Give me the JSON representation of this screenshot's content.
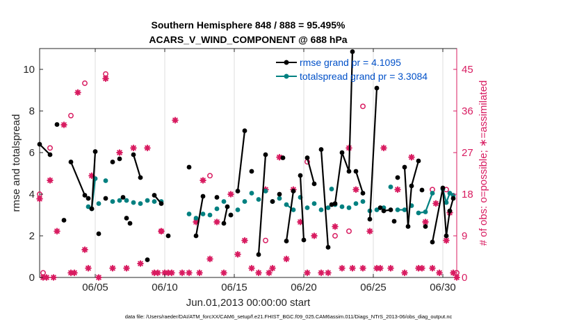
{
  "chart_data": {
    "type": "line",
    "title_line1": "Southern Hemisphere 848 / 888 = 95.495%",
    "title_line2": "ACARS_V_WIND_COMPONENT @ 688 hPa",
    "xlabel": "Jun.01,2013 00:00:00 start",
    "ylabel_left": "rmse and totalspread",
    "ylabel_right": "# of obs: o=possible; ∗=assimilated",
    "footnote": "data file: /Users/raeder/DAI/ATM_forcXX/CAM6_setup/f.e21.FHIST_BGC.f09_025.CAM6assim.011/Diags_NTrS_2013-06/obs_diag_output.nc",
    "xlim": [
      1,
      31
    ],
    "ylim_left": [
      0,
      11
    ],
    "ylim_right": [
      0,
      49.5
    ],
    "x_ticks": [
      5,
      10,
      15,
      20,
      25,
      30
    ],
    "x_tick_labels": [
      "06/05",
      "06/10",
      "06/15",
      "06/20",
      "06/25",
      "06/30"
    ],
    "y_ticks_left": [
      0,
      2,
      4,
      6,
      8,
      10
    ],
    "y_tick_labels_left": [
      "0",
      "2",
      "4",
      "6",
      "8",
      "10"
    ],
    "y_ticks_right": [
      0,
      9,
      18,
      27,
      36,
      45
    ],
    "y_tick_labels_right": [
      "0",
      "9",
      "18",
      "27",
      "36",
      "45"
    ],
    "colors": {
      "rmse": "#000000",
      "spread": "#008080",
      "obs": "#d81b60",
      "legend_text": "#0050c8"
    },
    "legend": [
      {
        "name": "rmse grand pr = 4.1095"
      },
      {
        "name": "totalspread grand pr = 3.3084"
      }
    ],
    "series": [
      {
        "name": "rmse",
        "x": [
          1.0,
          1.75,
          2.25,
          2.75,
          3.25,
          4.25,
          4.5,
          4.75,
          5.0,
          5.25,
          5.75,
          6.25,
          6.75,
          7.0,
          7.25,
          7.5,
          7.75,
          8.25,
          8.75,
          9.25,
          9.75,
          10.25,
          11.75,
          12.25,
          12.75,
          13.75,
          14.25,
          14.5,
          14.75,
          15.25,
          15.75,
          16.25,
          16.75,
          17.25,
          17.75,
          18.25,
          18.5,
          18.75,
          19.25,
          19.75,
          20.0,
          20.25,
          20.75,
          21.25,
          21.75,
          22.0,
          22.25,
          22.75,
          23.25,
          23.5,
          23.75,
          24.25,
          24.75,
          25.25,
          25.5,
          25.75,
          26.25,
          26.5,
          26.75,
          27.25,
          27.5,
          27.75,
          28.25,
          28.5,
          28.75,
          29.25,
          30.0,
          30.25,
          30.5,
          30.75
        ],
        "y": [
          6.4,
          5.9,
          7.35,
          2.75,
          5.55,
          3.95,
          3.8,
          3.3,
          6.05,
          2.1,
          3.8,
          5.55,
          5.7,
          3.85,
          2.85,
          2.6,
          5.9,
          4.8,
          0.85,
          3.95,
          3.55,
          2.0,
          5.3,
          2.0,
          3.9,
          3.85,
          2.6,
          3.4,
          3.0,
          4.15,
          7.05,
          5.1,
          1.1,
          5.9,
          3.65,
          4.0,
          5.75,
          1.75,
          4.15,
          4.9,
          1.8,
          5.75,
          4.5,
          6.15,
          1.45,
          3.5,
          3.55,
          6.0,
          5.1,
          10.85,
          5.1,
          4.05,
          2.8,
          9.1,
          3.35,
          3.2,
          3.25,
          2.7,
          4.8,
          5.3,
          2.45,
          4.4,
          5.6,
          4.2,
          2.45,
          1.7,
          4.3,
          2.0,
          3.2,
          3.8
        ],
        "segments": [
          [
            0,
            1
          ],
          [
            4,
            5
          ],
          [
            7,
            8
          ],
          [
            16,
            17
          ],
          [
            19,
            20
          ],
          [
            23,
            24
          ],
          [
            26,
            27
          ],
          [
            29,
            30
          ],
          [
            32,
            33
          ],
          [
            37,
            38
          ],
          [
            39,
            40
          ],
          [
            41,
            42
          ],
          [
            43,
            44
          ],
          [
            46,
            47
          ],
          [
            47,
            48
          ],
          [
            48,
            49
          ],
          [
            50,
            51
          ],
          [
            52,
            53
          ],
          [
            55,
            56
          ],
          [
            59,
            60
          ],
          [
            60,
            61
          ],
          [
            61,
            62
          ],
          [
            65,
            66
          ],
          [
            66,
            67
          ],
          [
            67,
            68
          ],
          [
            68,
            69
          ]
        ]
      },
      {
        "name": "totalspread",
        "x": [
          4.5,
          4.75,
          5.0,
          5.25,
          5.75,
          6.25,
          6.75,
          7.25,
          7.75,
          8.25,
          8.75,
          9.25,
          9.75,
          11.75,
          12.25,
          12.75,
          13.25,
          13.75,
          14.25,
          14.75,
          15.25,
          15.75,
          16.25,
          16.75,
          17.25,
          17.75,
          18.25,
          18.75,
          19.25,
          19.75,
          20.25,
          20.75,
          21.25,
          21.75,
          22.0,
          22.25,
          22.75,
          23.25,
          23.75,
          24.25,
          24.75,
          25.25,
          25.75,
          26.25,
          26.75,
          27.25,
          27.75,
          28.25,
          28.75,
          29.25,
          30.0,
          30.25,
          30.5,
          30.75
        ],
        "y": [
          3.4,
          3.3,
          4.75,
          3.55,
          4.65,
          3.65,
          3.7,
          3.7,
          3.6,
          3.55,
          3.7,
          3.65,
          3.65,
          3.05,
          2.85,
          3.05,
          3.0,
          3.3,
          3.65,
          3.0,
          3.25,
          3.65,
          4.05,
          3.75,
          4.15,
          3.65,
          3.8,
          3.5,
          3.25,
          3.85,
          3.35,
          3.55,
          3.25,
          3.35,
          4.25,
          3.5,
          3.4,
          3.35,
          3.55,
          3.65,
          3.2,
          3.25,
          3.35,
          4.35,
          3.25,
          3.25,
          3.45,
          3.1,
          3.15,
          4.05,
          4.25,
          3.6,
          4.05,
          3.95
        ],
        "segments": [
          [
            0,
            1
          ],
          [
            1,
            2
          ],
          [
            27,
            28
          ],
          [
            44,
            45
          ],
          [
            47,
            48
          ],
          [
            48,
            49
          ],
          [
            50,
            51
          ],
          [
            51,
            52
          ],
          [
            52,
            53
          ]
        ]
      },
      {
        "name": "obs possible",
        "x": [
          1.0,
          1.25,
          1.75,
          3.25,
          4.25,
          5.75,
          9.75,
          13.25,
          17.25,
          20.25,
          22.25,
          23.25,
          24.25,
          29.25,
          30.25,
          31.0
        ],
        "y": [
          18.0,
          1.0,
          28.0,
          35.0,
          42.0,
          44.0,
          10.0,
          22.0,
          8.0,
          25.0,
          9.0,
          10.0,
          37.0,
          19.0,
          19.0,
          1.0
        ],
        "segments": []
      },
      {
        "name": "obs assimilated",
        "x": [
          1.0,
          1.25,
          1.5,
          1.75,
          2.0,
          2.25,
          2.75,
          3.25,
          3.5,
          3.75,
          4.25,
          4.5,
          4.75,
          5.25,
          5.75,
          6.25,
          6.75,
          7.25,
          7.75,
          8.25,
          8.75,
          9.25,
          9.5,
          9.75,
          10.0,
          10.25,
          10.5,
          10.75,
          11.25,
          11.75,
          12.25,
          12.5,
          12.75,
          13.25,
          13.75,
          14.25,
          14.75,
          15.25,
          15.75,
          16.25,
          16.75,
          17.25,
          17.5,
          17.75,
          18.25,
          18.75,
          19.25,
          19.75,
          20.25,
          20.75,
          21.25,
          21.75,
          22.25,
          22.75,
          23.25,
          23.5,
          23.75,
          24.25,
          24.75,
          25.25,
          25.5,
          25.75,
          26.25,
          26.75,
          27.25,
          27.75,
          28.25,
          28.5,
          28.75,
          29.25,
          29.5,
          29.75,
          30.25,
          30.5,
          30.75,
          31.0
        ],
        "y": [
          17.0,
          0.0,
          0.0,
          21.0,
          0.0,
          10.0,
          33.0,
          1.0,
          1.0,
          40.0,
          6.0,
          2.0,
          22.0,
          0.0,
          43.0,
          2.0,
          27.0,
          2.0,
          28.0,
          3.0,
          28.0,
          1.0,
          1.0,
          10.0,
          1.0,
          1.0,
          1.0,
          34.0,
          1.0,
          1.0,
          12.0,
          1.0,
          21.0,
          4.0,
          12.0,
          1.0,
          18.0,
          5.0,
          8.0,
          2.0,
          1.0,
          19.0,
          1.0,
          2.0,
          26.0,
          4.0,
          19.0,
          12.0,
          1.0,
          9.0,
          1.0,
          1.0,
          11.0,
          2.0,
          28.0,
          2.0,
          19.0,
          2.0,
          10.0,
          2.0,
          2.0,
          28.0,
          2.0,
          19.0,
          1.0,
          26.0,
          2.0,
          2.0,
          12.0,
          2.0,
          16.0,
          1.0,
          8.0,
          14.0,
          1.0,
          0.0
        ],
        "segments": []
      }
    ]
  }
}
